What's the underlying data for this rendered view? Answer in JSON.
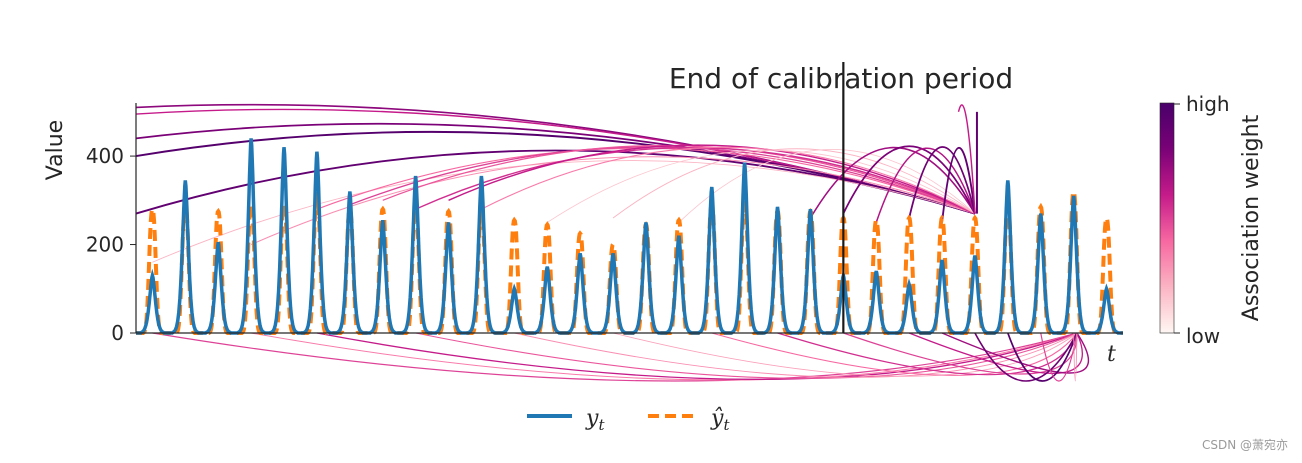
{
  "chart_data": {
    "type": "line",
    "title": "",
    "xlabel": "t",
    "ylabel": "Value",
    "ylim": [
      0,
      520
    ],
    "yticks": [
      0,
      200,
      400
    ],
    "annotation": {
      "text": "End of calibration period",
      "at_period": 21
    },
    "periods": 30,
    "y_peaks": [
      130,
      345,
      205,
      440,
      420,
      410,
      320,
      255,
      355,
      250,
      355,
      100,
      150,
      180,
      180,
      250,
      220,
      330,
      385,
      285,
      280,
      130,
      140,
      110,
      165,
      175,
      345,
      270,
      310,
      100
    ],
    "yhat_peaks": [
      280,
      290,
      275,
      290,
      290,
      310,
      280,
      280,
      280,
      275,
      275,
      255,
      245,
      225,
      200,
      245,
      255,
      290,
      290,
      275,
      275,
      260,
      255,
      260,
      260,
      260,
      285,
      285,
      320,
      260
    ],
    "series": [
      {
        "name": "y_t",
        "color": "#1f77b4",
        "style": "solid"
      },
      {
        "name": "ŷ_t",
        "color": "#ff7f0e",
        "style": "dashed"
      }
    ],
    "legend": {
      "placement": "bottom-center",
      "entries": [
        "yt",
        "ŷt"
      ]
    },
    "colorbar": {
      "label": "Association weight",
      "high": "high",
      "low": "low",
      "colors": [
        "#fff7f3",
        "#fbb4c3",
        "#f768a1",
        "#c51b8a",
        "#7a0177",
        "#49006a"
      ]
    },
    "association_arcs_top": {
      "target_period": 25,
      "target_value": 270,
      "arc_top": 510,
      "sources": [
        {
          "from": -1,
          "from_value": 510,
          "w": 0.75
        },
        {
          "from": -1,
          "from_value": 495,
          "w": 0.6
        },
        {
          "from": -1,
          "from_value": 440,
          "w": 0.8
        },
        {
          "from": -1,
          "from_value": 400,
          "w": 0.95
        },
        {
          "from": -1,
          "from_value": 270,
          "w": 0.9
        },
        {
          "from": 0,
          "from_value": 160,
          "w": 0.2
        },
        {
          "from": 3,
          "from_value": 200,
          "w": 0.3
        },
        {
          "from": 5,
          "from_value": 280,
          "w": 0.4
        },
        {
          "from": 6,
          "from_value": 290,
          "w": 0.5
        },
        {
          "from": 7,
          "from_value": 300,
          "w": 0.45
        },
        {
          "from": 8,
          "from_value": 280,
          "w": 0.55
        },
        {
          "from": 9,
          "from_value": 300,
          "w": 0.6
        },
        {
          "from": 10,
          "from_value": 280,
          "w": 0.35
        },
        {
          "from": 12,
          "from_value": 250,
          "w": 0.15
        },
        {
          "from": 14,
          "from_value": 260,
          "w": 0.2
        },
        {
          "from": 16,
          "from_value": 250,
          "w": 0.15
        },
        {
          "from": 20,
          "from_value": 260,
          "w": 0.7
        },
        {
          "from": 21,
          "from_value": 270,
          "w": 0.8
        },
        {
          "from": 22,
          "from_value": 250,
          "w": 0.65
        },
        {
          "from": 23,
          "from_value": 260,
          "w": 0.85
        },
        {
          "from": 24,
          "from_value": 250,
          "w": 0.9
        },
        {
          "from": 24.5,
          "from_value": 500,
          "w": 0.6
        }
      ]
    },
    "association_arcs_bottom": {
      "target_period": 28.6,
      "sources": [
        {
          "from": 0,
          "w": 0.5
        },
        {
          "from": 3,
          "w": 0.35
        },
        {
          "from": 5,
          "w": 0.6
        },
        {
          "from": 8,
          "w": 0.45
        },
        {
          "from": 11,
          "w": 0.3
        },
        {
          "from": 14,
          "w": 0.25
        },
        {
          "from": 17,
          "w": 0.4
        },
        {
          "from": 19,
          "w": 0.55
        },
        {
          "from": 21,
          "w": 0.5
        },
        {
          "from": 23,
          "w": 0.6
        },
        {
          "from": 24,
          "w": 0.7
        },
        {
          "from": 25,
          "w": 0.85
        },
        {
          "from": 26,
          "w": 0.95
        },
        {
          "from": 27,
          "w": 0.5
        },
        {
          "from": 28,
          "w": 0.3
        }
      ]
    }
  },
  "watermark": "CSDN @萧宛亦"
}
